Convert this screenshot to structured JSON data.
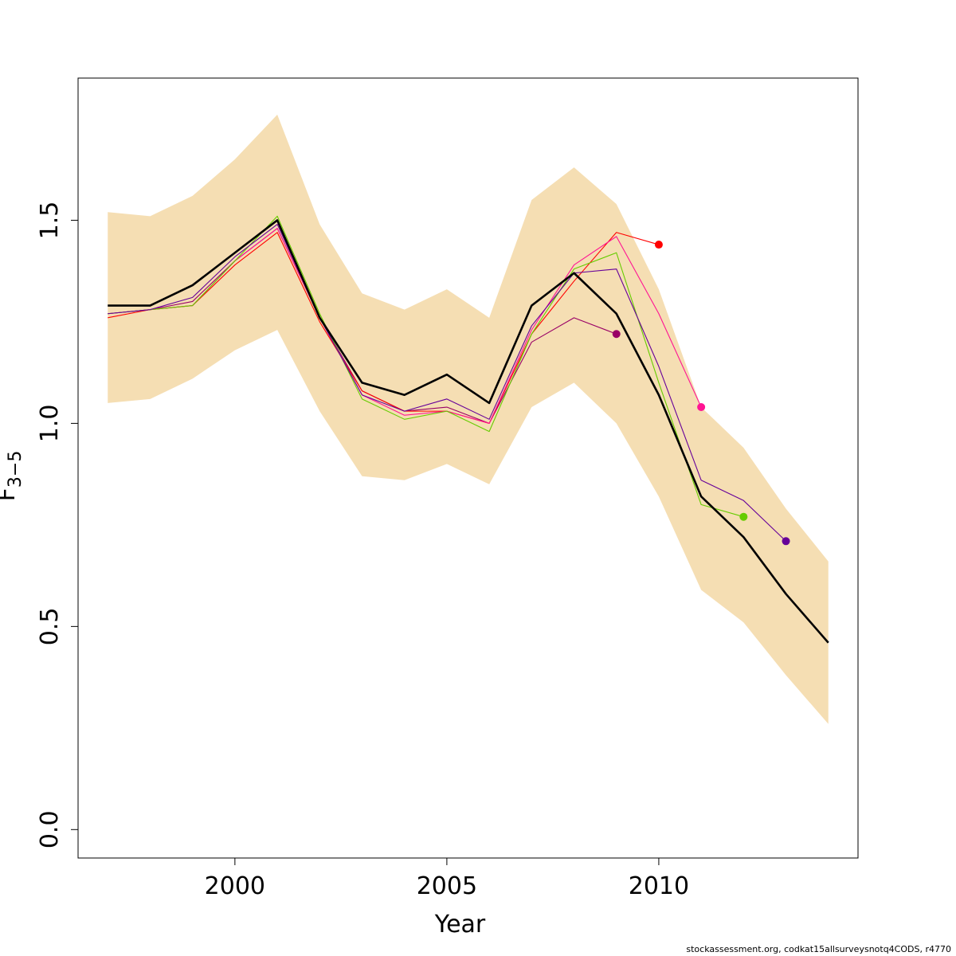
{
  "chart_data": {
    "type": "line",
    "xlabel": "Year",
    "ylabel_main": "F",
    "ylabel_sub": "3−5",
    "xlim": [
      1996.3,
      2014.7
    ],
    "ylim": [
      -0.07,
      1.85
    ],
    "x_ticks": [
      2000,
      2005,
      2010
    ],
    "y_ticks": [
      0.0,
      0.5,
      1.0,
      1.5
    ],
    "y_tick_labels": [
      "0.0",
      "0.5",
      "1.0",
      "1.5"
    ],
    "grid": false,
    "colors": {
      "band": "#f5deb3",
      "main": "#000000",
      "retro_1": "#990066",
      "retro_2": "#ff0000",
      "retro_3": "#ff1493",
      "retro_4": "#66cc00",
      "retro_5": "#660099"
    },
    "confidence_band": {
      "x": [
        1997,
        1998,
        1999,
        2000,
        2001,
        2002,
        2003,
        2004,
        2005,
        2006,
        2007,
        2008,
        2009,
        2010,
        2011,
        2012,
        2013,
        2014
      ],
      "upper": [
        1.52,
        1.51,
        1.56,
        1.65,
        1.76,
        1.49,
        1.32,
        1.28,
        1.33,
        1.26,
        1.55,
        1.63,
        1.54,
        1.33,
        1.04,
        0.94,
        0.79,
        0.66
      ],
      "lower": [
        1.05,
        1.06,
        1.11,
        1.18,
        1.23,
        1.03,
        0.87,
        0.86,
        0.9,
        0.85,
        1.04,
        1.1,
        1.0,
        0.82,
        0.59,
        0.51,
        0.38,
        0.26
      ]
    },
    "series": [
      {
        "role": "main",
        "color": "#000000",
        "x": [
          1997,
          1998,
          1999,
          2000,
          2001,
          2002,
          2003,
          2004,
          2005,
          2006,
          2007,
          2008,
          2009,
          2010,
          2011,
          2012,
          2013,
          2014
        ],
        "values": [
          1.29,
          1.29,
          1.34,
          1.42,
          1.5,
          1.26,
          1.1,
          1.07,
          1.12,
          1.05,
          1.29,
          1.37,
          1.27,
          1.07,
          0.82,
          0.72,
          0.58,
          0.46
        ]
      },
      {
        "role": "retro",
        "color": "#990066",
        "x": [
          1997,
          1998,
          1999,
          2000,
          2001,
          2002,
          2003,
          2004,
          2005,
          2006,
          2007,
          2008,
          2009
        ],
        "values": [
          1.27,
          1.28,
          1.3,
          1.4,
          1.48,
          1.26,
          1.08,
          1.03,
          1.04,
          1.0,
          1.2,
          1.26,
          1.22
        ],
        "end_marker": true
      },
      {
        "role": "retro",
        "color": "#ff0000",
        "x": [
          1997,
          1998,
          1999,
          2000,
          2001,
          2002,
          2003,
          2004,
          2005,
          2006,
          2007,
          2008,
          2009,
          2010
        ],
        "values": [
          1.26,
          1.28,
          1.29,
          1.39,
          1.47,
          1.25,
          1.08,
          1.03,
          1.03,
          1.0,
          1.22,
          1.35,
          1.47,
          1.44
        ],
        "end_marker": true
      },
      {
        "role": "retro",
        "color": "#ff1493",
        "x": [
          1997,
          1998,
          1999,
          2000,
          2001,
          2002,
          2003,
          2004,
          2005,
          2006,
          2007,
          2008,
          2009,
          2010,
          2011
        ],
        "values": [
          1.27,
          1.28,
          1.29,
          1.4,
          1.48,
          1.26,
          1.07,
          1.02,
          1.03,
          1.0,
          1.23,
          1.39,
          1.46,
          1.27,
          1.04
        ],
        "end_marker": true
      },
      {
        "role": "retro",
        "color": "#66cc00",
        "x": [
          1997,
          1998,
          1999,
          2000,
          2001,
          2002,
          2003,
          2004,
          2005,
          2006,
          2007,
          2008,
          2009,
          2010,
          2011,
          2012
        ],
        "values": [
          1.27,
          1.28,
          1.29,
          1.4,
          1.51,
          1.27,
          1.06,
          1.01,
          1.03,
          0.98,
          1.22,
          1.38,
          1.42,
          1.1,
          0.8,
          0.77
        ],
        "end_marker": true
      },
      {
        "role": "retro",
        "color": "#660099",
        "x": [
          1997,
          1998,
          1999,
          2000,
          2001,
          2002,
          2003,
          2004,
          2005,
          2006,
          2007,
          2008,
          2009,
          2010,
          2011,
          2012,
          2013
        ],
        "values": [
          1.27,
          1.28,
          1.31,
          1.41,
          1.49,
          1.26,
          1.07,
          1.03,
          1.06,
          1.01,
          1.24,
          1.37,
          1.38,
          1.14,
          0.86,
          0.81,
          0.71
        ],
        "end_marker": true
      }
    ]
  },
  "footer": {
    "text": "stockassessment.org, codkat15allsurveysnotq4CODS, r4770"
  }
}
